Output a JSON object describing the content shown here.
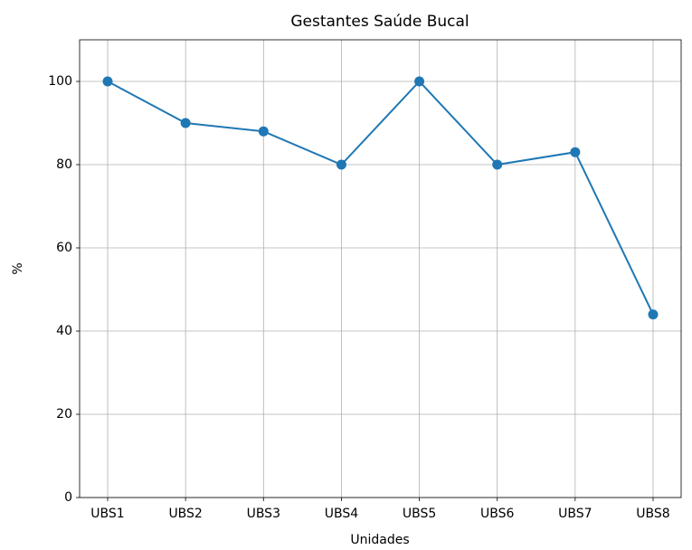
{
  "chart_data": {
    "type": "line",
    "title": "Gestantes Saúde Bucal",
    "xlabel": "Unidades",
    "ylabel": "%",
    "categories": [
      "UBS1",
      "UBS2",
      "UBS3",
      "UBS4",
      "UBS5",
      "UBS6",
      "UBS7",
      "UBS8"
    ],
    "series": [
      {
        "name": "Gestantes",
        "color": "#1f77b4",
        "values": [
          100,
          90,
          88,
          80,
          100,
          80,
          83,
          44
        ]
      }
    ],
    "ylim": [
      0,
      110
    ],
    "yticks": [
      0,
      20,
      40,
      60,
      80,
      100
    ],
    "grid": true
  }
}
